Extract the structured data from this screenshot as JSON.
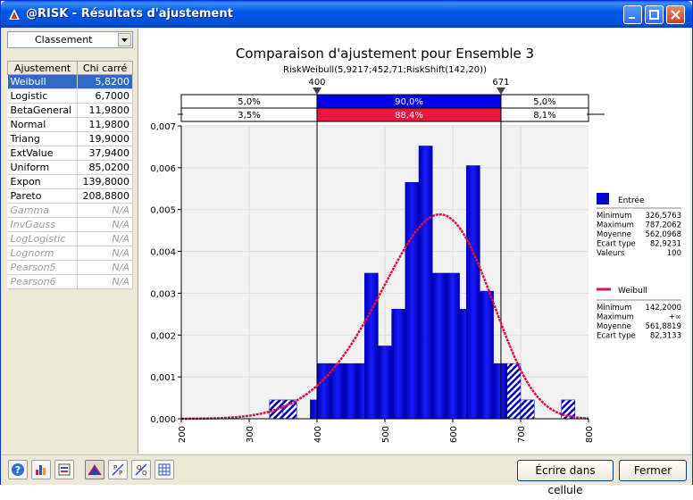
{
  "window": {
    "title": "@RISK - Résultats d'ajustement"
  },
  "left_panel": {
    "sort_label": "Classement",
    "table": {
      "headers": [
        "Ajustement",
        "Chi carré"
      ],
      "rows": [
        {
          "name": "Weibull",
          "value": "5,8200",
          "selected": true,
          "na": false
        },
        {
          "name": "Logistic",
          "value": "6,7000",
          "selected": false,
          "na": false
        },
        {
          "name": "BetaGeneral",
          "value": "11,9800",
          "selected": false,
          "na": false
        },
        {
          "name": "Normal",
          "value": "11,9800",
          "selected": false,
          "na": false
        },
        {
          "name": "Triang",
          "value": "19,9000",
          "selected": false,
          "na": false
        },
        {
          "name": "ExtValue",
          "value": "37,9400",
          "selected": false,
          "na": false
        },
        {
          "name": "Uniform",
          "value": "85,0200",
          "selected": false,
          "na": false
        },
        {
          "name": "Expon",
          "value": "139,8000",
          "selected": false,
          "na": false
        },
        {
          "name": "Pareto",
          "value": "208,8800",
          "selected": false,
          "na": false
        },
        {
          "name": "Gamma",
          "value": "N/A",
          "selected": false,
          "na": true
        },
        {
          "name": "InvGauss",
          "value": "N/A",
          "selected": false,
          "na": true
        },
        {
          "name": "LogLogistic",
          "value": "N/A",
          "selected": false,
          "na": true
        },
        {
          "name": "Lognorm",
          "value": "N/A",
          "selected": false,
          "na": true
        },
        {
          "name": "Pearson5",
          "value": "N/A",
          "selected": false,
          "na": true
        },
        {
          "name": "Pearson6",
          "value": "N/A",
          "selected": false,
          "na": true
        }
      ]
    }
  },
  "chart_data": {
    "type": "bar",
    "title": "Comparaison d'ajustement pour Ensemble 3",
    "subtitle": "RiskWeibull(5,9217;452,71;RiskShift(142,20))",
    "xlim": [
      200,
      800
    ],
    "ylim": [
      0,
      0.007
    ],
    "x_ticks": [
      "200",
      "300",
      "400",
      "500",
      "600",
      "700",
      "800"
    ],
    "y_ticks": [
      "0,000",
      "0,001",
      "0,002",
      "0,003",
      "0,004",
      "0,005",
      "0,006",
      "0,007"
    ],
    "delimiters": {
      "left": 400,
      "right": 671,
      "left_label": "400",
      "right_label": "671"
    },
    "top_band": [
      "5,0%",
      "90,0%",
      "5,0%"
    ],
    "fit_band": [
      "3,5%",
      "88,4%",
      "8,1%"
    ],
    "bin_width": 20,
    "histogram": [
      {
        "x0": 330,
        "density": 0.00045
      },
      {
        "x0": 350,
        "density": 0.00045
      },
      {
        "x0": 390,
        "density": 0.00045
      },
      {
        "x0": 400,
        "density": 0.00132
      },
      {
        "x0": 420,
        "density": 0.00132
      },
      {
        "x0": 440,
        "density": 0.00132
      },
      {
        "x0": 460,
        "density": 0.00132
      },
      {
        "x0": 470,
        "density": 0.00348
      },
      {
        "x0": 490,
        "density": 0.00174
      },
      {
        "x0": 510,
        "density": 0.00262
      },
      {
        "x0": 530,
        "density": 0.00565
      },
      {
        "x0": 550,
        "density": 0.00652
      },
      {
        "x0": 570,
        "density": 0.00348
      },
      {
        "x0": 590,
        "density": 0.00348
      },
      {
        "x0": 610,
        "density": 0.00262
      },
      {
        "x0": 620,
        "density": 0.00605
      },
      {
        "x0": 640,
        "density": 0.00305
      },
      {
        "x0": 660,
        "density": 0.00132
      },
      {
        "x0": 680,
        "density": 0.00132
      },
      {
        "x0": 700,
        "density": 0.00045
      },
      {
        "x0": 760,
        "density": 0.00045
      }
    ],
    "weibull": {
      "alpha": 5.9217,
      "beta": 452.71,
      "shift": 142.2
    },
    "legend": [
      {
        "name": "Entrée",
        "color": "#0000cc",
        "stats": [
          [
            "Minimum",
            "326,5763"
          ],
          [
            "Maximum",
            "787,2062"
          ],
          [
            "Moyenne",
            "562,0968"
          ],
          [
            "Ecart type",
            "82,9231"
          ],
          [
            "Valeurs",
            "100"
          ]
        ]
      },
      {
        "name": "Weibull",
        "color": "#dd1144",
        "stats": [
          [
            "Minimum",
            "142,2000"
          ],
          [
            "Maximum",
            "+∞"
          ],
          [
            "Moyenne",
            "561,8819"
          ],
          [
            "Ecart type",
            "82,3133"
          ]
        ]
      }
    ],
    "colors": {
      "histogram": "#0000cc",
      "fit_curve": "#dd1144",
      "band_blue": "#0000ee",
      "band_red": "#e8173d"
    }
  },
  "bottom_bar": {
    "write_button": "Écrire dans cellule",
    "close_button": "Fermer",
    "tools": [
      "help-icon",
      "histogram-icon",
      "sort-icon",
      "density-icon",
      "pp-plot-icon",
      "qq-plot-icon",
      "table-icon"
    ]
  }
}
